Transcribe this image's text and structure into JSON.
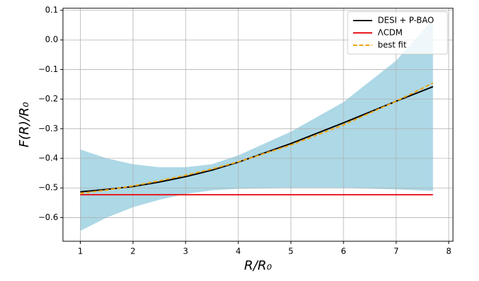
{
  "chart_data": {
    "type": "line",
    "xlabel": "R/R₀",
    "ylabel": "F(R)/R₀",
    "x": [
      1,
      1.5,
      2,
      2.5,
      3,
      3.5,
      4,
      5,
      6,
      7,
      7.7
    ],
    "series": [
      {
        "name": "DESI + P-BAO",
        "color": "#000000",
        "dash": false,
        "values": [
          -0.513,
          -0.505,
          -0.495,
          -0.48,
          -0.462,
          -0.44,
          -0.413,
          -0.35,
          -0.28,
          -0.207,
          -0.158
        ]
      },
      {
        "name": "ΛCDM",
        "color": "#e8141a",
        "dash": false,
        "values": [
          -0.523,
          -0.523,
          -0.523,
          -0.523,
          -0.523,
          -0.523,
          -0.523,
          -0.523,
          -0.523,
          -0.523,
          -0.523
        ]
      },
      {
        "name": "best fit",
        "color": "#f0a40a",
        "dash": true,
        "values": [
          -0.518,
          -0.507,
          -0.493,
          -0.476,
          -0.457,
          -0.436,
          -0.412,
          -0.355,
          -0.287,
          -0.207,
          -0.146
        ]
      }
    ],
    "band": {
      "color": "#add8e6",
      "upper": [
        -0.37,
        -0.4,
        -0.42,
        -0.43,
        -0.43,
        -0.42,
        -0.39,
        -0.31,
        -0.21,
        -0.07,
        0.07
      ],
      "lower": [
        -0.645,
        -0.6,
        -0.565,
        -0.54,
        -0.52,
        -0.508,
        -0.503,
        -0.5,
        -0.5,
        -0.505,
        -0.51
      ]
    },
    "xlim": [
      0.67,
      8.08
    ],
    "ylim": [
      -0.68,
      0.107
    ],
    "xticks": [
      1,
      2,
      3,
      4,
      5,
      6,
      7,
      8
    ],
    "yticks": [
      0.1,
      {
        "value": 0,
        "label": "0.0"
      },
      {
        "value": -0.1,
        "label": "−0.1"
      },
      {
        "value": -0.2,
        "label": "−0.2"
      },
      {
        "value": -0.3,
        "label": "−0.3"
      },
      {
        "value": -0.4,
        "label": "−0.4"
      },
      {
        "value": -0.5,
        "label": "−0.5"
      },
      {
        "value": -0.6,
        "label": "−0.6"
      }
    ],
    "grid": true,
    "legend": "upper right"
  }
}
